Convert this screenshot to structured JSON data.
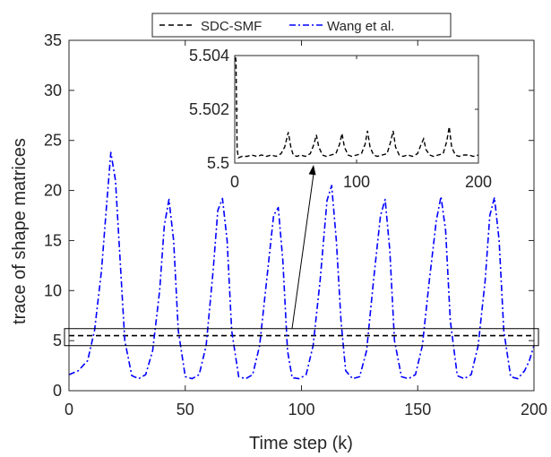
{
  "chart_data": {
    "type": "line",
    "xlabel": "Time step (k)",
    "ylabel": "trace of shape matrices",
    "xlim": [
      0,
      200
    ],
    "ylim": [
      0,
      35
    ],
    "xticks": [
      0,
      50,
      100,
      150,
      200
    ],
    "yticks": [
      0,
      5,
      10,
      15,
      20,
      25,
      30,
      35
    ],
    "grid": false,
    "legend": {
      "placement": "top-center",
      "orientation": "horizontal"
    },
    "series": [
      {
        "name": "SDC-SMF",
        "color": "#000000",
        "style": "dashed",
        "y_constant": 5.5
      },
      {
        "name": "Wang et al.",
        "color": "#0000ff",
        "style": "dash-dot",
        "x": [
          0,
          4,
          8,
          11,
          14,
          16,
          18,
          20,
          22,
          24,
          27,
          30,
          33,
          36,
          39,
          41,
          43,
          45,
          47,
          50,
          53,
          56,
          59,
          62,
          64,
          66,
          68,
          70,
          73,
          76,
          79,
          82,
          85,
          88,
          90,
          92,
          94,
          96,
          99,
          102,
          105,
          108,
          111,
          113,
          115,
          117,
          119,
          122,
          125,
          128,
          131,
          134,
          136,
          138,
          140,
          143,
          146,
          149,
          152,
          155,
          158,
          160,
          162,
          164,
          167,
          170,
          173,
          176,
          179,
          181,
          183,
          185,
          187,
          190,
          193,
          196,
          198,
          200
        ],
        "y": [
          1.6,
          2.0,
          3.0,
          6.0,
          12.0,
          18.0,
          23.8,
          21.0,
          13.0,
          5.0,
          1.5,
          1.2,
          1.6,
          4.0,
          10.0,
          16.5,
          19.1,
          15.0,
          6.0,
          1.4,
          1.2,
          1.6,
          4.5,
          12.0,
          18.0,
          19.2,
          15.0,
          6.0,
          1.4,
          1.2,
          1.6,
          4.5,
          11.0,
          17.5,
          18.3,
          13.0,
          4.0,
          1.3,
          1.2,
          1.6,
          4.5,
          11.0,
          19.0,
          20.5,
          15.0,
          7.0,
          2.0,
          1.2,
          1.4,
          4.0,
          11.0,
          17.5,
          19.1,
          14.0,
          5.0,
          1.4,
          1.2,
          1.6,
          4.5,
          11.0,
          17.0,
          19.4,
          16.0,
          7.0,
          1.5,
          1.2,
          1.6,
          4.5,
          11.0,
          17.5,
          19.3,
          15.0,
          6.0,
          1.4,
          1.2,
          2.0,
          3.0,
          4.5
        ]
      }
    ],
    "highlight_box": {
      "xlim": [
        0,
        200
      ],
      "ylim": [
        4.5,
        6.2
      ]
    },
    "inset": {
      "xlim": [
        0,
        200
      ],
      "ylim": [
        5.5,
        5.504
      ],
      "xticks": [
        0,
        100,
        200
      ],
      "yticks": [
        5.5,
        5.502,
        5.504
      ],
      "ytick_labels": [
        "5.5",
        "5.502",
        "5.504"
      ],
      "series": {
        "name": "SDC-SMF",
        "color": "#000000",
        "style": "dashed",
        "x": [
          0,
          1,
          2,
          3,
          6,
          10,
          14,
          18,
          22,
          26,
          30,
          34,
          38,
          41,
          44,
          46,
          48,
          51,
          54,
          58,
          62,
          65,
          67,
          69,
          72,
          75,
          79,
          83,
          86,
          88,
          90,
          93,
          96,
          100,
          104,
          107,
          109,
          111,
          114,
          117,
          121,
          125,
          128,
          130,
          132,
          135,
          138,
          142,
          146,
          150,
          153,
          155,
          157,
          160,
          163,
          167,
          171,
          174,
          176,
          178,
          181,
          184,
          188,
          192,
          196,
          200
        ],
        "y": [
          5.5042,
          5.5038,
          5.5005,
          5.5002,
          5.50025,
          5.50025,
          5.5003,
          5.50025,
          5.5003,
          5.50025,
          5.5003,
          5.50025,
          5.50035,
          5.5006,
          5.50115,
          5.5006,
          5.5003,
          5.50025,
          5.5003,
          5.50025,
          5.50035,
          5.5007,
          5.50105,
          5.5006,
          5.5003,
          5.50025,
          5.5003,
          5.50035,
          5.5007,
          5.5011,
          5.5006,
          5.5003,
          5.50025,
          5.5003,
          5.50035,
          5.5007,
          5.5012,
          5.5006,
          5.5003,
          5.50025,
          5.5003,
          5.50035,
          5.5008,
          5.5012,
          5.5006,
          5.5003,
          5.50025,
          5.5003,
          5.50025,
          5.50035,
          5.5007,
          5.5009,
          5.5005,
          5.5003,
          5.50025,
          5.5003,
          5.50035,
          5.5008,
          5.50135,
          5.5006,
          5.5003,
          5.50025,
          5.5003,
          5.5003,
          5.50025,
          5.5003
        ]
      }
    }
  }
}
